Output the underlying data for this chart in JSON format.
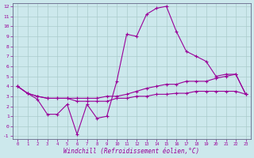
{
  "xlabel": "Windchill (Refroidissement éolien,°C)",
  "xlim": [
    0,
    23
  ],
  "ylim": [
    -1,
    12
  ],
  "xticks": [
    0,
    1,
    2,
    3,
    4,
    5,
    6,
    7,
    8,
    9,
    10,
    11,
    12,
    13,
    14,
    15,
    16,
    17,
    18,
    19,
    20,
    21,
    22,
    23
  ],
  "yticks": [
    -1,
    0,
    1,
    2,
    3,
    4,
    5,
    6,
    7,
    8,
    9,
    10,
    11,
    12
  ],
  "bg_color": "#cce8ec",
  "line_color": "#990099",
  "grid_color": "#aacccc",
  "line1_x": [
    0,
    1,
    2,
    3,
    4,
    5,
    6,
    7,
    8,
    9,
    10,
    11,
    12,
    13,
    14,
    15,
    16,
    17,
    18,
    19,
    20,
    21,
    22,
    23
  ],
  "line1_y": [
    4.0,
    3.3,
    2.7,
    1.2,
    1.2,
    2.2,
    -0.8,
    2.2,
    0.8,
    1.0,
    4.5,
    9.2,
    9.0,
    11.2,
    11.8,
    12.0,
    9.5,
    7.5,
    7.0,
    6.5,
    5.0,
    5.2,
    5.2,
    3.2
  ],
  "line2_x": [
    0,
    1,
    2,
    3,
    4,
    5,
    6,
    7,
    8,
    9,
    10,
    11,
    12,
    13,
    14,
    15,
    16,
    17,
    18,
    19,
    20,
    21,
    22,
    23
  ],
  "line2_y": [
    4.0,
    3.3,
    3.0,
    2.8,
    2.8,
    2.8,
    2.8,
    2.8,
    2.8,
    3.0,
    3.0,
    3.2,
    3.5,
    3.8,
    4.0,
    4.2,
    4.2,
    4.5,
    4.5,
    4.5,
    4.8,
    5.0,
    5.2,
    3.2
  ],
  "line3_x": [
    0,
    1,
    2,
    3,
    4,
    5,
    6,
    7,
    8,
    9,
    10,
    11,
    12,
    13,
    14,
    15,
    16,
    17,
    18,
    19,
    20,
    21,
    22,
    23
  ],
  "line3_y": [
    4.0,
    3.3,
    3.0,
    2.8,
    2.8,
    2.8,
    2.5,
    2.5,
    2.5,
    2.5,
    2.8,
    2.8,
    3.0,
    3.0,
    3.2,
    3.2,
    3.3,
    3.3,
    3.5,
    3.5,
    3.5,
    3.5,
    3.5,
    3.2
  ]
}
